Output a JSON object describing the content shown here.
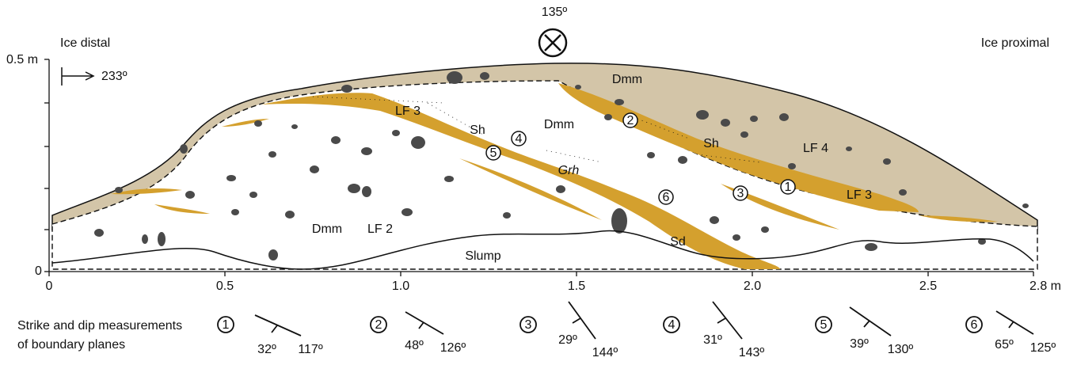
{
  "header": {
    "azimuth": "135º",
    "left_label": "Ice distal",
    "right_label": "Ice proximal",
    "flow": "233º"
  },
  "axes": {
    "y_labels": [
      "0.5 m",
      "0"
    ],
    "x_labels": [
      "0",
      "0.5",
      "1.0",
      "1.5",
      "2.0",
      "2.5",
      "2.8 m"
    ]
  },
  "units": [
    "Dmm",
    "LF 3",
    "Sh",
    "Dmm",
    "Grh",
    "Sh",
    "LF 4",
    "LF 3",
    "Dmm",
    "LF 2",
    "Sd",
    "Slump"
  ],
  "markers": [
    "1",
    "2",
    "3",
    "4",
    "5",
    "6"
  ],
  "legend": {
    "title_lines": [
      "Strike and dip measurements",
      "of boundary planes"
    ],
    "items": [
      {
        "id": "1",
        "dip": "32º",
        "strike": "117º"
      },
      {
        "id": "2",
        "dip": "48º",
        "strike": "126º"
      },
      {
        "id": "3",
        "dip": "29º",
        "strike": "144º"
      },
      {
        "id": "4",
        "dip": "31º",
        "strike": "143º"
      },
      {
        "id": "5",
        "dip": "39º",
        "strike": "130º"
      },
      {
        "id": "6",
        "dip": "65º",
        "strike": "125º"
      }
    ]
  }
}
